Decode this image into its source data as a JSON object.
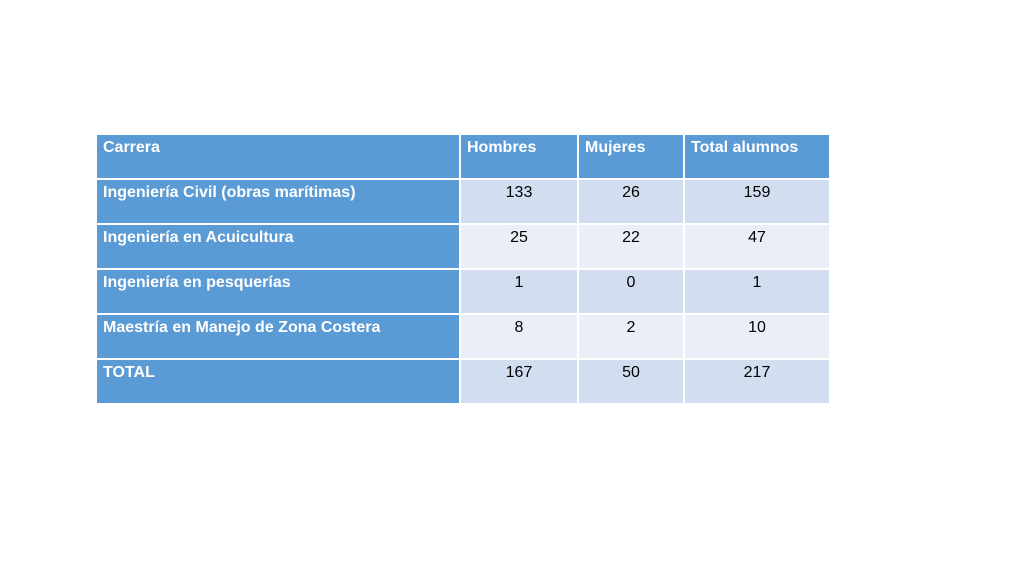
{
  "table": {
    "headers": [
      "Carrera",
      "Hombres",
      "Mujeres",
      "Total alumnos"
    ],
    "rows": [
      {
        "carrera": "Ingeniería Civil (obras marítimas)",
        "hombres": "133",
        "mujeres": "26",
        "total": "159"
      },
      {
        "carrera": "Ingeniería en Acuicultura",
        "hombres": "25",
        "mujeres": "22",
        "total": "47"
      },
      {
        "carrera": "Ingeniería en pesquerías",
        "hombres": "1",
        "mujeres": "0",
        "total": "1"
      },
      {
        "carrera": "Maestría en Manejo de Zona Costera",
        "hombres": "8",
        "mujeres": "2",
        "total": "10"
      },
      {
        "carrera": "TOTAL",
        "hombres": "167",
        "mujeres": "50",
        "total": "217"
      }
    ]
  },
  "colors": {
    "header_bg": "#5b9bd5",
    "row_odd_bg": "#d2deef",
    "row_even_bg": "#eaeff7"
  }
}
